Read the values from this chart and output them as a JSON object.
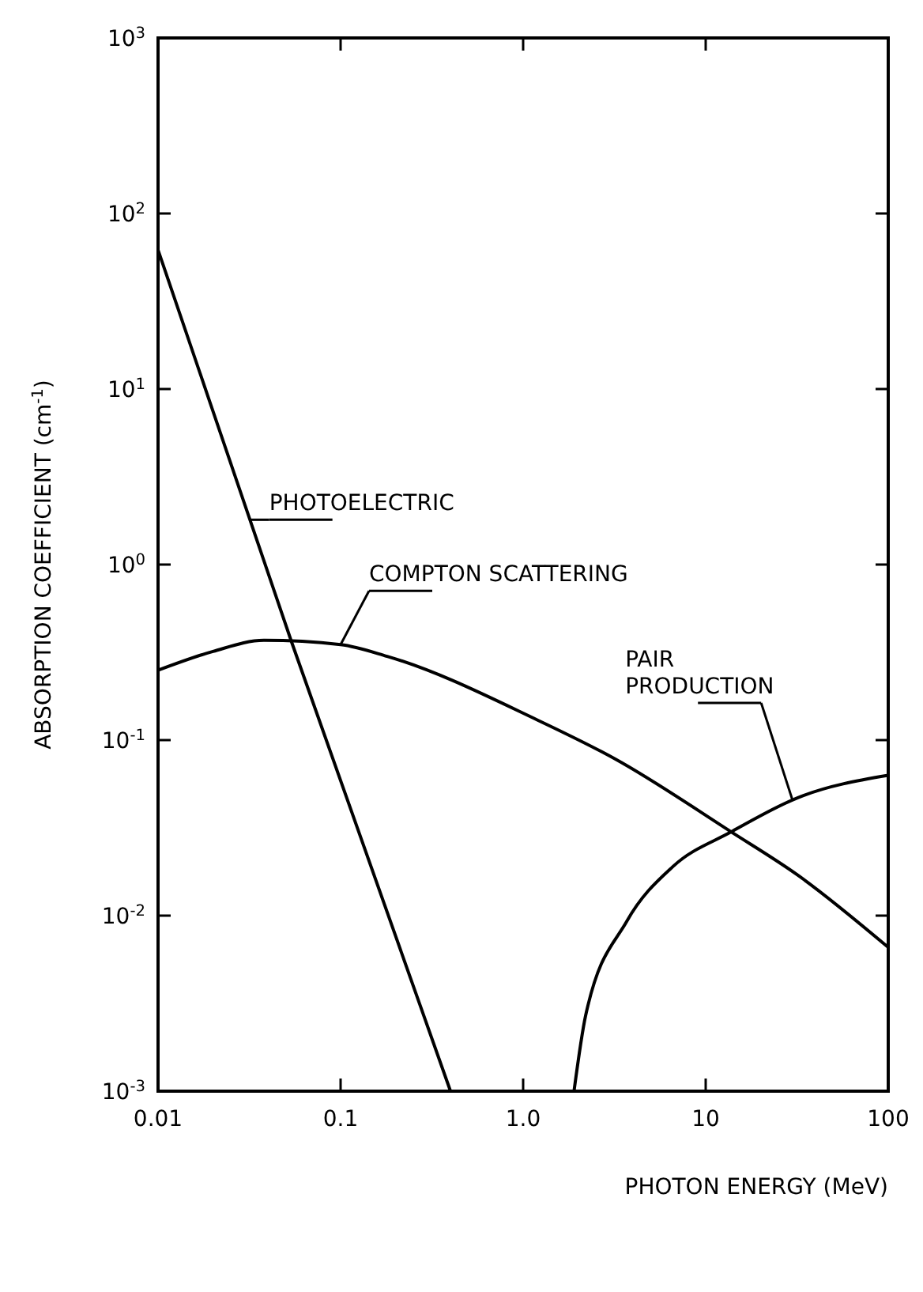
{
  "chart_data": {
    "type": "line",
    "xlabel": "PHOTON ENERGY (MeV)",
    "ylabel": "ABSORPTION COEFFICIENT (cm$^{-1}$)",
    "log": "xy",
    "grid": false,
    "marker": "none",
    "line_style": "solid",
    "xlim": [
      0.01,
      100
    ],
    "ylim": [
      0.001,
      1000
    ],
    "xticks": [
      0.01,
      0.1,
      {
        "value": 1,
        "label": "1.0"
      },
      10,
      100
    ],
    "yticks": [
      {
        "value": 0.001,
        "label": "10$^{-3}$"
      },
      {
        "value": 0.01,
        "label": "10$^{-2}$"
      },
      {
        "value": 0.1,
        "label": "10$^{-1}$"
      },
      {
        "value": 1,
        "label": "10$^{0}$"
      },
      {
        "value": 10,
        "label": "10$^{1}$"
      },
      {
        "value": 100,
        "label": "10$^{2}$"
      },
      {
        "value": 1000,
        "label": "10$^{3}$"
      }
    ],
    "series": [
      {
        "color": "#000000",
        "x": [
          0.01,
          0.054,
          0.4
        ],
        "values": [
          62,
          0.36,
          0.001
        ]
      },
      {
        "color": "#000000",
        "x": [
          0.01,
          0.02,
          0.038,
          0.1,
          0.18,
          1.2,
          3.2,
          13.8,
          32,
          100
        ],
        "values": [
          0.25,
          0.32,
          0.37,
          0.35,
          0.3,
          0.13,
          0.078,
          0.03,
          0.017,
          0.0066
        ]
      },
      {
        "color": "#000000",
        "x": [
          1.9,
          2.2,
          3.7,
          6.6,
          13.8,
          32,
          100
        ],
        "values": [
          0.001,
          0.0027,
          0.0093,
          0.019,
          0.03,
          0.047,
          0.063
        ]
      }
    ],
    "annotations": [
      {
        "text": "PHOTOELECTRIC",
        "x": 0.032,
        "y": 1.8
      },
      {
        "text": "COMPTON SCATTERING",
        "x": 0.1,
        "y": 0.35
      },
      {
        "text": "PAIR\nPRODUCTION",
        "x": 30,
        "y": 0.045
      }
    ]
  }
}
